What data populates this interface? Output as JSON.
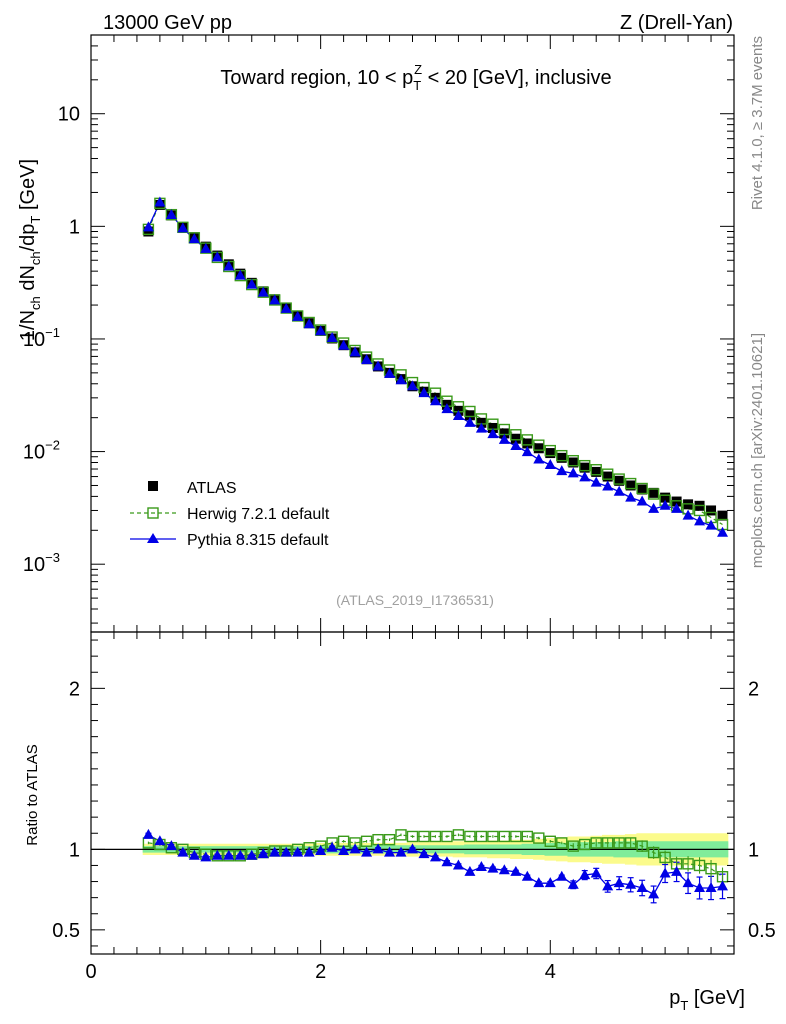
{
  "header": {
    "left": "13000 GeV pp",
    "right": "Z (Drell-Yan)"
  },
  "side_labels": {
    "rivet": "Rivet 4.1.0, ≥ 3.7M events",
    "mcplots": "mcplots.cern.ch [arXiv:2401.10621]"
  },
  "colors": {
    "atlas": "#000000",
    "herwig": "#3a9a1a",
    "pythia": "#0000e6",
    "band_inner": "#80ec9a",
    "band_outer": "#fbfb8c"
  },
  "chart_data": {
    "type": "line",
    "title": "Toward region, 10 < p_T^Z < 20 [GeV], inclusive",
    "title_parts": {
      "prefix": "Toward region, 10 < p",
      "sup": "Z",
      "sub": "T",
      "suffix": " < 20 [GeV], inclusive"
    },
    "reference": "(ATLAS_2019_I1736531)",
    "xlabel": "p_T [GeV]",
    "xlabel_parts": {
      "main": "p",
      "sub": "T",
      "suffix": " [GeV]"
    },
    "ylabel": "1/N_ch dN_ch/dp_T [GeV]",
    "ratio_ylabel": "Ratio to ATLAS",
    "xlim": [
      0,
      5.6
    ],
    "ylim_main": [
      0.00025,
      50
    ],
    "ylim_ratio": [
      0.35,
      2.35
    ],
    "main_tick_labels": [
      "10",
      "1",
      "10",
      "10",
      "10"
    ],
    "main_tick_exponents": [
      "",
      "",
      "−1",
      "−2",
      "−3"
    ],
    "x_tick_labels": [
      "0",
      "2",
      "4"
    ],
    "ratio_tick_labels": [
      "2",
      "1",
      "0.5"
    ],
    "legend": [
      "ATLAS",
      "Herwig 7.2.1 default",
      "Pythia 8.315 default"
    ],
    "x": [
      0.5,
      0.6,
      0.7,
      0.8,
      0.9,
      1.0,
      1.1,
      1.2,
      1.3,
      1.4,
      1.5,
      1.6,
      1.7,
      1.8,
      1.9,
      2.0,
      2.1,
      2.2,
      2.3,
      2.4,
      2.5,
      2.6,
      2.7,
      2.8,
      2.9,
      3.0,
      3.1,
      3.2,
      3.3,
      3.4,
      3.5,
      3.6,
      3.7,
      3.8,
      3.9,
      4.0,
      4.1,
      4.2,
      4.3,
      4.4,
      4.5,
      4.6,
      4.7,
      4.8,
      4.9,
      5.0,
      5.1,
      5.2,
      5.3,
      5.4,
      5.5
    ],
    "series": [
      {
        "name": "ATLAS",
        "values": [
          0.9,
          1.55,
          1.25,
          0.98,
          0.8,
          0.66,
          0.55,
          0.46,
          0.38,
          0.315,
          0.265,
          0.225,
          0.19,
          0.16,
          0.138,
          0.118,
          0.101,
          0.088,
          0.076,
          0.066,
          0.057,
          0.05,
          0.044,
          0.038,
          0.034,
          0.03,
          0.026,
          0.023,
          0.021,
          0.018,
          0.0162,
          0.0145,
          0.013,
          0.0118,
          0.0107,
          0.0097,
          0.0088,
          0.008,
          0.0072,
          0.0066,
          0.006,
          0.0055,
          0.005,
          0.0046,
          0.0043,
          0.0039,
          0.0036,
          0.0034,
          0.0033,
          0.003,
          0.0027
        ]
      },
      {
        "name": "Herwig 7.2.1 default",
        "values": [
          0.94,
          1.6,
          1.27,
          0.98,
          0.79,
          0.64,
          0.53,
          0.44,
          0.365,
          0.304,
          0.26,
          0.222,
          0.188,
          0.16,
          0.14,
          0.12,
          0.104,
          0.092,
          0.079,
          0.069,
          0.06,
          0.053,
          0.048,
          0.041,
          0.037,
          0.033,
          0.028,
          0.025,
          0.0227,
          0.0195,
          0.0175,
          0.0157,
          0.0141,
          0.0127,
          0.0114,
          0.0102,
          0.0092,
          0.0083,
          0.0075,
          0.0069,
          0.0063,
          0.0057,
          0.0052,
          0.0047,
          0.0042,
          0.0037,
          0.0033,
          0.0031,
          0.003,
          0.0026,
          0.00225
        ]
      },
      {
        "name": "Pythia 8.315 default",
        "values": [
          0.98,
          1.63,
          1.26,
          0.96,
          0.77,
          0.63,
          0.53,
          0.44,
          0.365,
          0.304,
          0.258,
          0.22,
          0.185,
          0.157,
          0.135,
          0.117,
          0.102,
          0.087,
          0.076,
          0.065,
          0.057,
          0.049,
          0.043,
          0.038,
          0.033,
          0.028,
          0.0238,
          0.0207,
          0.018,
          0.016,
          0.0143,
          0.0127,
          0.0112,
          0.0099,
          0.0085,
          0.0076,
          0.0067,
          0.0064,
          0.0059,
          0.0053,
          0.0049,
          0.0044,
          0.0039,
          0.0036,
          0.0031,
          0.0033,
          0.0031,
          0.0027,
          0.0024,
          0.0022,
          0.0019
        ]
      }
    ],
    "ratio_series": [
      {
        "name": "Herwig 7.2.1 default",
        "values": [
          1.04,
          1.03,
          1.01,
          1.0,
          0.98,
          0.97,
          0.96,
          0.96,
          0.96,
          0.97,
          0.98,
          0.99,
          0.99,
          1.0,
          1.01,
          1.02,
          1.04,
          1.05,
          1.04,
          1.05,
          1.06,
          1.06,
          1.09,
          1.08,
          1.08,
          1.08,
          1.08,
          1.09,
          1.08,
          1.08,
          1.08,
          1.08,
          1.08,
          1.08,
          1.07,
          1.05,
          1.04,
          1.02,
          1.03,
          1.04,
          1.04,
          1.04,
          1.04,
          1.02,
          0.98,
          0.95,
          0.91,
          0.91,
          0.9,
          0.88,
          0.83
        ]
      },
      {
        "name": "Pythia 8.315 default",
        "values": [
          1.09,
          1.05,
          1.02,
          0.98,
          0.96,
          0.95,
          0.96,
          0.96,
          0.96,
          0.96,
          0.97,
          0.98,
          0.98,
          0.98,
          0.98,
          0.99,
          1.01,
          0.99,
          1.0,
          0.98,
          1.0,
          0.98,
          0.98,
          1.0,
          0.97,
          0.95,
          0.92,
          0.9,
          0.86,
          0.89,
          0.88,
          0.87,
          0.86,
          0.83,
          0.79,
          0.79,
          0.83,
          0.78,
          0.84,
          0.85,
          0.77,
          0.79,
          0.78,
          0.76,
          0.72,
          0.85,
          0.86,
          0.79,
          0.76,
          0.76,
          0.77
        ]
      }
    ],
    "band": {
      "inner": [
        0.02,
        0.02,
        0.02,
        0.02,
        0.02,
        0.02,
        0.02,
        0.02,
        0.02,
        0.02,
        0.02,
        0.02,
        0.02,
        0.02,
        0.02,
        0.025,
        0.025,
        0.025,
        0.025,
        0.025,
        0.025,
        0.025,
        0.025,
        0.025,
        0.025,
        0.025,
        0.025,
        0.025,
        0.03,
        0.03,
        0.03,
        0.03,
        0.03,
        0.035,
        0.035,
        0.04,
        0.04,
        0.045,
        0.045,
        0.045,
        0.045,
        0.05,
        0.05,
        0.05,
        0.05,
        0.05,
        0.05,
        0.05,
        0.05,
        0.05,
        0.05
      ],
      "outer": [
        0.035,
        0.035,
        0.035,
        0.035,
        0.035,
        0.035,
        0.035,
        0.035,
        0.035,
        0.035,
        0.035,
        0.035,
        0.035,
        0.035,
        0.035,
        0.04,
        0.04,
        0.04,
        0.04,
        0.04,
        0.04,
        0.04,
        0.04,
        0.045,
        0.045,
        0.045,
        0.045,
        0.05,
        0.05,
        0.05,
        0.055,
        0.055,
        0.06,
        0.06,
        0.065,
        0.07,
        0.075,
        0.08,
        0.08,
        0.085,
        0.09,
        0.09,
        0.095,
        0.1,
        0.1,
        0.1,
        0.1,
        0.1,
        0.1,
        0.1,
        0.1
      ]
    }
  }
}
